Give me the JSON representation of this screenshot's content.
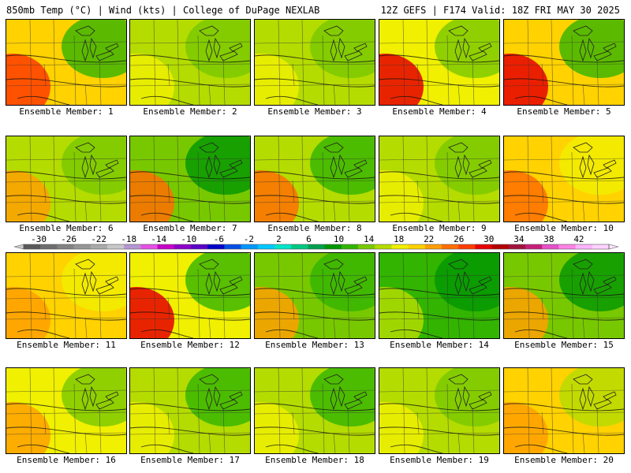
{
  "header": {
    "left": "850mb Temp (°C) | Wind (kts) | College of DuPage NEXLAB",
    "right": "12Z GEFS | F174 Valid: 18Z FRI MAY 30 2025"
  },
  "legend": {
    "ticks": [
      "-30",
      "-26",
      "-22",
      "-18",
      "-14",
      "-10",
      "-6",
      "-2",
      "2",
      "6",
      "10",
      "14",
      "18",
      "22",
      "26",
      "30",
      "34",
      "38",
      "42"
    ],
    "tick_values": [
      -30,
      -26,
      -22,
      -18,
      -14,
      -10,
      -6,
      -2,
      2,
      6,
      10,
      14,
      18,
      22,
      26,
      30,
      34,
      38,
      42
    ],
    "colors": [
      "#5a5a5a",
      "#6e6e6e",
      "#828282",
      "#969696",
      "#aaaaaa",
      "#c8c8c8",
      "#b496d2",
      "#e650e6",
      "#c800c8",
      "#8c00c8",
      "#5a00c8",
      "#0000c8",
      "#0050e6",
      "#0096ff",
      "#00c8ff",
      "#00e6c8",
      "#00c882",
      "#00a050",
      "#009600",
      "#32b400",
      "#78c800",
      "#b4dc00",
      "#f0f000",
      "#ffd200",
      "#ffa000",
      "#ff6e00",
      "#ff3c00",
      "#e60000",
      "#b40000",
      "#a0143c",
      "#c81e78",
      "#e650c8",
      "#ff82e6",
      "#ffb4ff",
      "#ffd2ff"
    ]
  },
  "members": [
    {
      "label": "Ensemble Member: 1",
      "fill": "#ffd200",
      "west": "#ff3c00",
      "east": "#32b400"
    },
    {
      "label": "Ensemble Member: 2",
      "fill": "#b4dc00",
      "west": "#f0f000",
      "east": "#78c800"
    },
    {
      "label": "Ensemble Member: 3",
      "fill": "#b4dc00",
      "west": "#f0f000",
      "east": "#78c800"
    },
    {
      "label": "Ensemble Member: 4",
      "fill": "#f0f000",
      "west": "#e60000",
      "east": "#78c800"
    },
    {
      "label": "Ensemble Member: 5",
      "fill": "#ffd200",
      "west": "#e60000",
      "east": "#32b400"
    },
    {
      "label": "Ensemble Member: 6",
      "fill": "#b4dc00",
      "west": "#ffa000",
      "east": "#78c800"
    },
    {
      "label": "Ensemble Member: 7",
      "fill": "#78c800",
      "west": "#ff6e00",
      "east": "#009600"
    },
    {
      "label": "Ensemble Member: 8",
      "fill": "#b4dc00",
      "west": "#ff6e00",
      "east": "#32b400"
    },
    {
      "label": "Ensemble Member: 9",
      "fill": "#b4dc00",
      "west": "#f0f000",
      "east": "#78c800"
    },
    {
      "label": "Ensemble Member: 10",
      "fill": "#ffd200",
      "west": "#ff6e00",
      "east": "#f0f000"
    },
    {
      "label": "Ensemble Member: 11",
      "fill": "#ffd200",
      "west": "#ffa000",
      "east": "#f0f000"
    },
    {
      "label": "Ensemble Member: 12",
      "fill": "#f0f000",
      "west": "#e60000",
      "east": "#32b400"
    },
    {
      "label": "Ensemble Member: 13",
      "fill": "#78c800",
      "west": "#ffa000",
      "east": "#32b400"
    },
    {
      "label": "Ensemble Member: 14",
      "fill": "#32b400",
      "west": "#b4dc00",
      "east": "#009600"
    },
    {
      "label": "Ensemble Member: 15",
      "fill": "#78c800",
      "west": "#ffa000",
      "east": "#009600"
    },
    {
      "label": "Ensemble Member: 16",
      "fill": "#f0f000",
      "west": "#ffa000",
      "east": "#78c800"
    },
    {
      "label": "Ensemble Member: 17",
      "fill": "#b4dc00",
      "west": "#f0f000",
      "east": "#32b400"
    },
    {
      "label": "Ensemble Member: 18",
      "fill": "#b4dc00",
      "west": "#f0f000",
      "east": "#32b400"
    },
    {
      "label": "Ensemble Member: 19",
      "fill": "#b4dc00",
      "west": "#f0f000",
      "east": "#78c800"
    },
    {
      "label": "Ensemble Member: 20",
      "fill": "#ffd200",
      "west": "#ffa000",
      "east": "#b4dc00"
    }
  ]
}
